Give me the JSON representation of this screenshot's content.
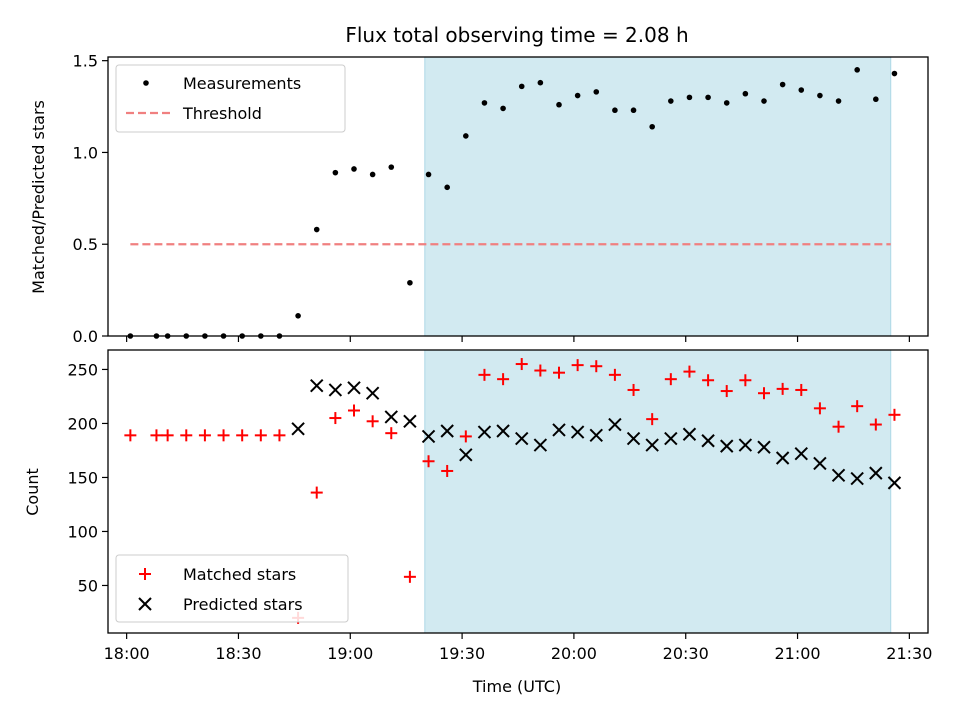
{
  "chart_data": [
    {
      "type": "scatter",
      "title": "Flux total observing time = 2.08 h",
      "xlabel": "",
      "ylabel": "Matched/Predicted stars",
      "xlim_minutes": [
        1075,
        1295
      ],
      "ylim": [
        0,
        1.52
      ],
      "yticks": [
        "0.0",
        "0.5",
        "1.0",
        "1.5"
      ],
      "ytick_values": [
        0,
        0.5,
        1.0,
        1.5
      ],
      "shaded_span_minutes": [
        1160,
        1285
      ],
      "legend": {
        "position": "top-left",
        "entries": [
          "Measurements",
          "Threshold"
        ]
      },
      "colors": {
        "measurements": "#000000",
        "threshold": "#f08080",
        "shade": "#add8e6"
      },
      "threshold": {
        "value": 0.5,
        "x_start": 1081,
        "x_end": 1285
      },
      "series": [
        {
          "name": "Measurements",
          "x_minutes": [
            1081,
            1088,
            1091,
            1096,
            1101,
            1106,
            1111,
            1116,
            1121,
            1126,
            1131,
            1136,
            1141,
            1146,
            1151,
            1156,
            1161,
            1166,
            1171,
            1176,
            1181,
            1186,
            1191,
            1196,
            1201,
            1206,
            1211,
            1216,
            1221,
            1226,
            1231,
            1236,
            1241,
            1246,
            1251,
            1256,
            1261,
            1266,
            1271,
            1276,
            1281,
            1286
          ],
          "values": [
            0,
            0,
            0,
            0,
            0,
            0,
            0,
            0,
            0,
            0.11,
            0.58,
            0.89,
            0.91,
            0.88,
            0.92,
            0.29,
            0.88,
            0.81,
            1.09,
            1.27,
            1.24,
            1.36,
            1.38,
            1.26,
            1.31,
            1.33,
            1.23,
            1.23,
            1.14,
            1.28,
            1.3,
            1.3,
            1.27,
            1.32,
            1.28,
            1.37,
            1.34,
            1.31,
            1.28,
            1.45,
            1.29,
            1.43
          ]
        }
      ]
    },
    {
      "type": "scatter",
      "title": "",
      "xlabel": "Time (UTC)",
      "ylabel": "Count",
      "xlim_minutes": [
        1075,
        1295
      ],
      "ylim": [
        6,
        268
      ],
      "yticks": [
        "50",
        "100",
        "150",
        "200",
        "250"
      ],
      "ytick_values": [
        50,
        100,
        150,
        200,
        250
      ],
      "xticks": [
        "18:00",
        "18:30",
        "19:00",
        "19:30",
        "20:00",
        "20:30",
        "21:00",
        "21:30"
      ],
      "xtick_minutes": [
        1080,
        1110,
        1140,
        1170,
        1200,
        1230,
        1260,
        1290
      ],
      "shaded_span_minutes": [
        1160,
        1285
      ],
      "legend": {
        "position": "bottom-left",
        "entries": [
          "Matched stars",
          "Predicted stars"
        ]
      },
      "colors": {
        "matched": "#ff0000",
        "predicted": "#000000",
        "shade": "#add8e6"
      },
      "series": [
        {
          "name": "Matched stars",
          "marker": "plus",
          "x_minutes": [
            1081,
            1088,
            1091,
            1096,
            1101,
            1106,
            1111,
            1116,
            1121,
            1126,
            1131,
            1136,
            1141,
            1146,
            1151,
            1156,
            1161,
            1166,
            1171,
            1176,
            1181,
            1186,
            1191,
            1196,
            1201,
            1206,
            1211,
            1216,
            1221,
            1226,
            1231,
            1236,
            1241,
            1246,
            1251,
            1256,
            1261,
            1266,
            1271,
            1276,
            1281,
            1286
          ],
          "values": [
            189,
            189,
            189,
            189,
            189,
            189,
            189,
            189,
            189,
            20,
            136,
            205,
            212,
            202,
            191,
            58,
            165,
            156,
            188,
            245,
            241,
            255,
            249,
            247,
            254,
            253,
            245,
            231,
            204,
            241,
            248,
            240,
            230,
            240,
            228,
            232,
            231,
            214,
            197,
            216,
            199,
            208
          ]
        },
        {
          "name": "Predicted stars",
          "marker": "x",
          "x_minutes": [
            1126,
            1131,
            1136,
            1141,
            1146,
            1151,
            1156,
            1161,
            1166,
            1171,
            1176,
            1181,
            1186,
            1191,
            1196,
            1201,
            1206,
            1211,
            1216,
            1221,
            1226,
            1231,
            1236,
            1241,
            1246,
            1251,
            1256,
            1261,
            1266,
            1271,
            1276,
            1281,
            1286
          ],
          "values": [
            195,
            235,
            231,
            233,
            228,
            206,
            202,
            188,
            193,
            171,
            192,
            193,
            186,
            180,
            194,
            192,
            189,
            199,
            186,
            180,
            186,
            190,
            184,
            179,
            180,
            178,
            168,
            172,
            163,
            152,
            149,
            154,
            145
          ]
        }
      ]
    }
  ]
}
